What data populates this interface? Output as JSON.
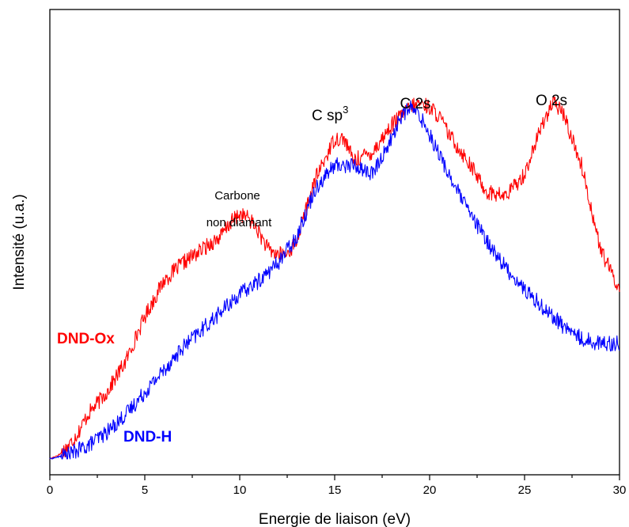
{
  "chart_data": {
    "type": "line",
    "title": "",
    "xlabel": "Energie de liaison (eV)",
    "ylabel": "Intensité (u.a.)",
    "xlim": [
      0,
      30
    ],
    "ylim": [
      0,
      1
    ],
    "x_ticks": [
      "0",
      "5",
      "10",
      "15",
      "20",
      "25",
      "30"
    ],
    "grid": false,
    "y_tick_labels_shown": false,
    "series": [
      {
        "name": "DND-Ox",
        "color": "#ff0000",
        "x": [
          0,
          0.5,
          1,
          1.5,
          2,
          3,
          4,
          4.5,
          5,
          5.5,
          6,
          7,
          8,
          9,
          9.5,
          10,
          10.5,
          11,
          11.5,
          12,
          12.5,
          13,
          14,
          15,
          15.5,
          16,
          17,
          18,
          19,
          19.5,
          20,
          20.5,
          21,
          22,
          23,
          24,
          25,
          26,
          26.5,
          27,
          28,
          29,
          30
        ],
        "y": [
          0.0,
          0.01,
          0.03,
          0.06,
          0.1,
          0.15,
          0.22,
          0.27,
          0.32,
          0.36,
          0.4,
          0.44,
          0.47,
          0.5,
          0.53,
          0.55,
          0.54,
          0.51,
          0.47,
          0.46,
          0.46,
          0.49,
          0.63,
          0.72,
          0.72,
          0.67,
          0.69,
          0.75,
          0.79,
          0.8,
          0.79,
          0.77,
          0.73,
          0.67,
          0.6,
          0.59,
          0.64,
          0.76,
          0.8,
          0.78,
          0.66,
          0.47,
          0.38
        ]
      },
      {
        "name": "DND-H",
        "color": "#0000ff",
        "x": [
          0,
          1,
          2,
          3,
          4,
          5,
          6,
          7,
          8,
          9,
          10,
          11,
          12,
          13,
          14,
          15,
          16,
          17,
          18,
          18.5,
          19,
          19.5,
          20,
          21,
          22,
          23,
          24,
          25,
          26,
          27,
          28,
          29,
          30
        ],
        "y": [
          0.0,
          0.01,
          0.03,
          0.06,
          0.1,
          0.15,
          0.2,
          0.25,
          0.29,
          0.33,
          0.37,
          0.4,
          0.44,
          0.5,
          0.61,
          0.66,
          0.66,
          0.64,
          0.72,
          0.77,
          0.79,
          0.77,
          0.73,
          0.64,
          0.56,
          0.49,
          0.43,
          0.38,
          0.34,
          0.3,
          0.27,
          0.26,
          0.26
        ]
      }
    ],
    "annotations": {
      "carbone_line1": "Carbone",
      "carbone_line2": "non diamant",
      "csp3_base": "C sp",
      "csp3_sup": "3",
      "c2s": "C 2s",
      "o2s": "O 2s"
    },
    "legend": {
      "placement": "inline-left",
      "ox_label": "DND-Ox",
      "h_label": "DND-H"
    }
  }
}
